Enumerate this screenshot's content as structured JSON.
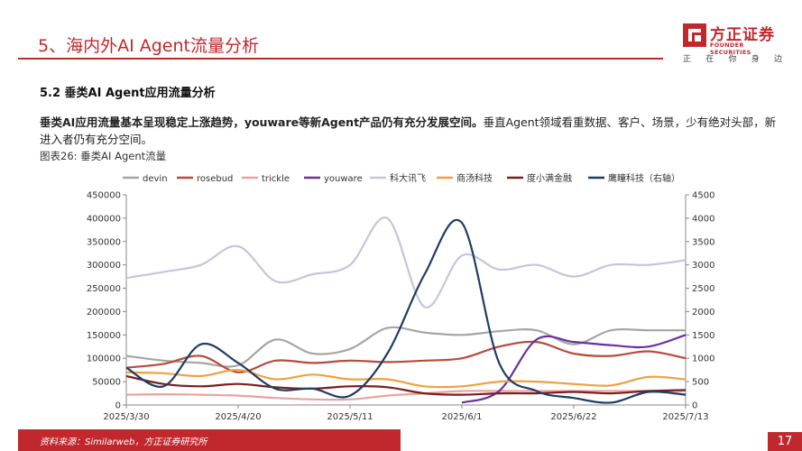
{
  "header": {
    "title": "5、海内外AI Agent流量分析",
    "logo_cn": "方正证券",
    "logo_en": "FOUNDER SECURITIES",
    "slogan": [
      "正",
      "在",
      "你",
      "身",
      "边"
    ]
  },
  "section_title": "5.2 垂类AI Agent应用流量分析",
  "summary": {
    "bold": "垂类AI应用流量基本呈现稳定上涨趋势，youware等新Agent产品仍有充分发展空间。",
    "rest": "垂直Agent领域看重数据、客户、场景，少有绝对头部，新进入者仍有充分空间。"
  },
  "figure_title": "图表26: 垂类AI Agent流量",
  "footer": {
    "source": "资料来源：Similarweb，方正证券研究所",
    "page": "17"
  },
  "colors": {
    "accent": "#c0282e"
  },
  "chart_data": {
    "type": "line",
    "x": [
      "2025/3/30",
      "2025/4/6",
      "2025/4/13",
      "2025/4/20",
      "2025/4/27",
      "2025/5/4",
      "2025/5/11",
      "2025/5/18",
      "2025/5/25",
      "2025/6/1",
      "2025/6/8",
      "2025/6/15",
      "2025/6/22",
      "2025/6/29",
      "2025/7/6",
      "2025/7/13"
    ],
    "x_tick_labels": [
      "2025/3/30",
      "2025/4/20",
      "2025/5/11",
      "2025/6/1",
      "2025/6/22",
      "2025/7/13"
    ],
    "left_axis": {
      "ylim": [
        0,
        450000
      ],
      "ticks": [
        0,
        50000,
        100000,
        150000,
        200000,
        250000,
        300000,
        350000,
        400000,
        450000
      ]
    },
    "right_axis": {
      "ylim": [
        0,
        4500
      ],
      "ticks": [
        0,
        500,
        1000,
        1500,
        2000,
        2500,
        3000,
        3500,
        4000,
        4500
      ],
      "label": "右轴"
    },
    "legend_position": "top",
    "grid": false,
    "series": [
      {
        "name": "devin",
        "color": "#a5a5a5",
        "axis": "left",
        "values": [
          105000,
          95000,
          90000,
          85000,
          140000,
          110000,
          120000,
          165000,
          155000,
          150000,
          158000,
          160000,
          130000,
          160000,
          160000,
          160000
        ]
      },
      {
        "name": "rosebud",
        "color": "#b84a3e",
        "axis": "left",
        "values": [
          80000,
          88000,
          105000,
          70000,
          95000,
          90000,
          95000,
          92000,
          95000,
          100000,
          125000,
          135000,
          110000,
          105000,
          115000,
          100000
        ]
      },
      {
        "name": "trickle",
        "color": "#e8a3a0",
        "axis": "left",
        "values": [
          22000,
          23000,
          22000,
          20000,
          15000,
          12000,
          12000,
          20000,
          25000,
          30000,
          30000,
          30000,
          30000,
          30000,
          30000,
          30000
        ]
      },
      {
        "name": "youware",
        "color": "#6a2fa0",
        "axis": "left",
        "values": [
          null,
          null,
          null,
          null,
          null,
          null,
          null,
          null,
          null,
          5000,
          30000,
          140000,
          135000,
          128000,
          125000,
          150000
        ]
      },
      {
        "name": "科大讯飞",
        "color": "#c9c3dd",
        "axis": "left",
        "values": [
          272000,
          285000,
          300000,
          340000,
          265000,
          280000,
          300000,
          400000,
          210000,
          320000,
          290000,
          300000,
          275000,
          300000,
          300000,
          310000
        ]
      },
      {
        "name": "商汤科技",
        "color": "#f0a040",
        "axis": "left",
        "values": [
          70000,
          68000,
          62000,
          75000,
          55000,
          65000,
          55000,
          55000,
          40000,
          40000,
          50000,
          50000,
          45000,
          42000,
          60000,
          55000
        ]
      },
      {
        "name": "度小满金融",
        "color": "#7a1e1e",
        "axis": "left",
        "values": [
          62000,
          45000,
          40000,
          45000,
          38000,
          35000,
          40000,
          38000,
          25000,
          22000,
          25000,
          25000,
          28000,
          25000,
          30000,
          32000
        ]
      },
      {
        "name": "鹰瞳科技（右轴）",
        "color": "#1f3c66",
        "axis": "right",
        "values": [
          800,
          400,
          1300,
          900,
          350,
          350,
          200,
          1100,
          2800,
          3900,
          900,
          300,
          150,
          50,
          280,
          220
        ]
      }
    ]
  }
}
